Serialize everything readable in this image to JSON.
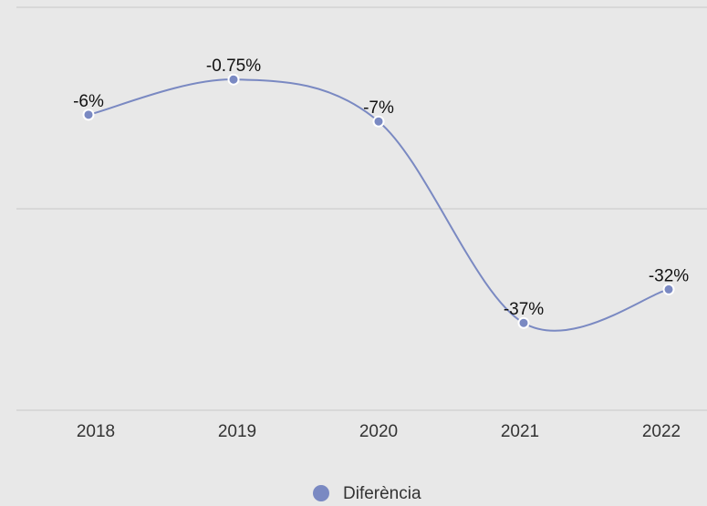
{
  "chart_data": {
    "type": "line",
    "categories": [
      "2018",
      "2019",
      "2020",
      "2021",
      "2022"
    ],
    "series": [
      {
        "name": "Diferència",
        "color": "#7a89c2",
        "values": [
          -6,
          -0.75,
          -7,
          -37,
          -32
        ],
        "value_labels": [
          "-6%",
          "-0.75%",
          "-7%",
          "-37%",
          "-32%"
        ]
      }
    ],
    "ylim": [
      -50,
      10
    ],
    "yticks": [
      -50,
      -20,
      10
    ],
    "grid": true,
    "smooth": true,
    "legend": "bottom"
  }
}
